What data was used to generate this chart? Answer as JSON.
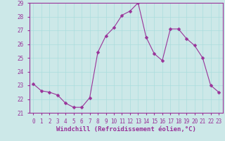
{
  "x": [
    0,
    1,
    2,
    3,
    4,
    5,
    6,
    7,
    8,
    9,
    10,
    11,
    12,
    13,
    14,
    15,
    16,
    17,
    18,
    19,
    20,
    21,
    22,
    23
  ],
  "y": [
    23.1,
    22.6,
    22.5,
    22.3,
    21.7,
    21.4,
    21.4,
    22.1,
    25.4,
    26.6,
    27.2,
    28.1,
    28.4,
    29.0,
    26.5,
    25.3,
    24.8,
    27.1,
    27.1,
    26.4,
    25.9,
    25.0,
    23.0,
    22.5
  ],
  "line_color": "#993399",
  "marker": "D",
  "marker_size": 2.5,
  "bg_color": "#cce8e8",
  "grid_color": "#aadddd",
  "xlabel": "Windchill (Refroidissement éolien,°C)",
  "ylim": [
    21,
    29
  ],
  "xlim": [
    -0.5,
    23.5
  ],
  "yticks": [
    21,
    22,
    23,
    24,
    25,
    26,
    27,
    28,
    29
  ],
  "xticks": [
    0,
    1,
    2,
    3,
    4,
    5,
    6,
    7,
    8,
    9,
    10,
    11,
    12,
    13,
    14,
    15,
    16,
    17,
    18,
    19,
    20,
    21,
    22,
    23
  ],
  "tick_color": "#993399",
  "label_color": "#993399",
  "tick_fontsize": 5.5,
  "xlabel_fontsize": 6.5,
  "spine_color": "#993399"
}
